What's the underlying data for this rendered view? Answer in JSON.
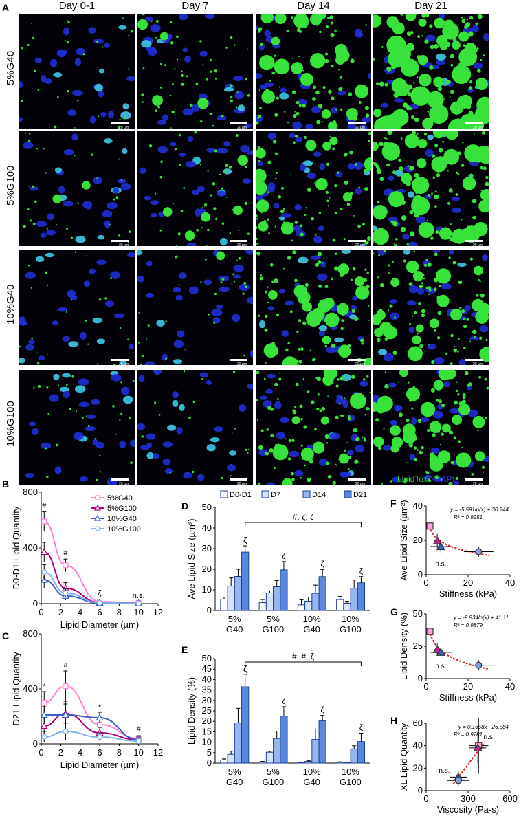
{
  "panel_labels": {
    "a": "A",
    "b": "B",
    "c": "C",
    "d": "D",
    "e": "E",
    "f": "F",
    "g": "G",
    "h": "H"
  },
  "micrographs": {
    "columns": [
      "Day 0-1",
      "Day 7",
      "Day 14",
      "Day 21"
    ],
    "rows": [
      "5%G40",
      "5%G100",
      "10%G40",
      "10%G100"
    ],
    "scale_bar": "20 µm",
    "stain_legend": {
      "lipidtox": "LipidTox",
      "sep": " • ",
      "dapi": "DAPI",
      "lipidtox_color": "#2fcf3a",
      "dapi_color": "#2a3cff"
    },
    "lipid_density_levels": [
      [
        0.05,
        0.25,
        0.55,
        0.85
      ],
      [
        0.08,
        0.2,
        0.5,
        0.8
      ],
      [
        0.02,
        0.06,
        0.55,
        0.6
      ],
      [
        0.06,
        0.0,
        0.6,
        0.6
      ]
    ]
  },
  "chart_data": [
    {
      "id": "B",
      "type": "scatter",
      "xlabel": "Lipid Diameter (µm)",
      "ylabel": "D0-D1 Lipid Quantity",
      "xlim": [
        0,
        12
      ],
      "ylim": [
        0,
        800
      ],
      "xticks": [
        0,
        2,
        4,
        6,
        8,
        10,
        12
      ],
      "yticks": [
        0,
        400,
        800
      ],
      "legend_position": "top-right",
      "x": [
        0.3,
        2.5,
        6,
        10
      ],
      "series": [
        {
          "name": "5%G40",
          "color": "#ff7fd6",
          "marker": "square",
          "values": [
            590,
            275,
            15,
            5
          ],
          "err": [
            70,
            45,
            10,
            5
          ]
        },
        {
          "name": "5%G100",
          "color": "#b0007a",
          "marker": "triangle",
          "values": [
            370,
            110,
            8,
            3
          ],
          "err": [
            70,
            40,
            8,
            3
          ]
        },
        {
          "name": "10%G40",
          "color": "#3a5fcd",
          "marker": "triangle",
          "values": [
            170,
            55,
            5,
            2
          ],
          "err": [
            60,
            30,
            5,
            2
          ]
        },
        {
          "name": "10%G100",
          "color": "#7fb3f0",
          "marker": "circle",
          "values": [
            225,
            75,
            6,
            2
          ],
          "err": [
            55,
            30,
            5,
            2
          ]
        }
      ],
      "annotations": [
        {
          "x": 0.3,
          "y": 690,
          "text": "#"
        },
        {
          "x": 2.5,
          "y": 345,
          "text": "#"
        },
        {
          "x": 6,
          "y": 60,
          "text": "ζ"
        },
        {
          "x": 10,
          "y": 40,
          "text": "n.s."
        }
      ]
    },
    {
      "id": "C",
      "type": "scatter",
      "xlabel": "Lipid Diameter (µm)",
      "ylabel": "D21 Lipid Quantity",
      "xlim": [
        0,
        12
      ],
      "ylim": [
        0,
        800
      ],
      "xticks": [
        0,
        2,
        4,
        6,
        8,
        10,
        12
      ],
      "yticks": [
        0,
        400,
        800
      ],
      "x": [
        0.3,
        2.5,
        6,
        10
      ],
      "series": [
        {
          "name": "5%G40",
          "color": "#ff7fd6",
          "marker": "square",
          "values": [
            300,
            420,
            140,
            40
          ],
          "err": [
            80,
            110,
            40,
            20
          ]
        },
        {
          "name": "5%G100",
          "color": "#b0007a",
          "marker": "triangle",
          "values": [
            130,
            220,
            80,
            30
          ],
          "err": [
            60,
            90,
            40,
            20
          ]
        },
        {
          "name": "10%G40",
          "color": "#3a5fcd",
          "marker": "triangle",
          "values": [
            210,
            210,
            190,
            30
          ],
          "err": [
            60,
            80,
            40,
            20
          ]
        },
        {
          "name": "10%G100",
          "color": "#7fb3f0",
          "marker": "circle",
          "values": [
            50,
            90,
            50,
            20
          ],
          "err": [
            40,
            60,
            30,
            15
          ]
        }
      ],
      "annotations": [
        {
          "x": 0.3,
          "y": 400,
          "text": "*"
        },
        {
          "x": 2.5,
          "y": 560,
          "text": "#"
        },
        {
          "x": 6,
          "y": 250,
          "text": "*"
        },
        {
          "x": 10,
          "y": 90,
          "text": "#"
        }
      ]
    },
    {
      "id": "D",
      "type": "bar",
      "ylabel": "Ave Lipid Size (µm²)",
      "ylim": [
        0,
        50
      ],
      "yticks": [
        0,
        10,
        20,
        30,
        40,
        50
      ],
      "categories": [
        "5%\nG40",
        "5%\nG100",
        "10%\nG40",
        "10%\nG100"
      ],
      "legend_position": "top",
      "bracket_label": "#, ζ, ζ",
      "series": [
        {
          "name": "D0-D1",
          "color": "#ffffff",
          "values": [
            5.5,
            3.8,
            2.7,
            5.3
          ],
          "err": [
            1,
            1.5,
            2.5,
            1.5
          ]
        },
        {
          "name": "D7",
          "color": "#d6e3f8",
          "values": [
            11.8,
            8.5,
            4.5,
            3.5
          ],
          "err": [
            4,
            1,
            2,
            1
          ]
        },
        {
          "name": "D14",
          "color": "#97b7ec",
          "values": [
            16.5,
            11.5,
            8.3,
            10.8
          ],
          "err": [
            3.5,
            3,
            4,
            4
          ]
        },
        {
          "name": "D21",
          "color": "#5b86dd",
          "values": [
            28.3,
            19.7,
            16.4,
            13.4
          ],
          "err": [
            3,
            4,
            3.5,
            3
          ]
        }
      ],
      "bar_marks": [
        "ζ",
        "ζ",
        "ζ",
        "ζ"
      ]
    },
    {
      "id": "E",
      "type": "bar",
      "ylabel": "Lipid Density (%)",
      "ylim": [
        0,
        50
      ],
      "yticks": [
        0,
        5,
        10,
        15,
        20,
        25,
        30,
        35,
        40,
        45,
        50
      ],
      "categories": [
        "5%\nG40",
        "5%\nG100",
        "10%\nG40",
        "10%\nG100"
      ],
      "bracket_label": "#, #, ζ",
      "series": [
        {
          "name": "D0-D1",
          "color": "#ffffff",
          "values": [
            1.5,
            0.5,
            0.3,
            0.4
          ],
          "err": [
            0.5,
            0.3,
            0.2,
            0.2
          ]
        },
        {
          "name": "D7",
          "color": "#d6e3f8",
          "values": [
            4.2,
            5.2,
            0.8,
            0.3
          ],
          "err": [
            1.5,
            0.5,
            0.3,
            0.2
          ]
        },
        {
          "name": "D14",
          "color": "#97b7ec",
          "values": [
            19.2,
            11.8,
            11.3,
            6.8
          ],
          "err": [
            7,
            3.5,
            5,
            1.5
          ]
        },
        {
          "name": "D21",
          "color": "#5b86dd",
          "values": [
            36.5,
            22.5,
            20.3,
            10.3
          ],
          "err": [
            6,
            4.5,
            2.5,
            4
          ]
        }
      ],
      "bar_marks": [
        "ζ",
        "ζ",
        "ζ",
        "ζ"
      ]
    },
    {
      "id": "F",
      "type": "scatter",
      "xlabel": "Stiffness (kPa)",
      "ylabel": "Ave Lipid Size (µm²)",
      "xlim": [
        0,
        40
      ],
      "ylim": [
        0,
        40
      ],
      "xticks": [
        0,
        20,
        40
      ],
      "yticks": [
        0,
        20,
        40
      ],
      "equation": "y = -5.591ln(x) + 30.244",
      "r2": "R² = 0.9251",
      "points": [
        {
          "x": 1.8,
          "y": 28.3,
          "xerr": 0.8,
          "yerr": 3,
          "color": "#ff9fdc",
          "marker": "square"
        },
        {
          "x": 5.3,
          "y": 19.7,
          "xerr": 1.5,
          "yerr": 4,
          "color": "#c0258f",
          "marker": "triangle"
        },
        {
          "x": 7.0,
          "y": 16.4,
          "xerr": 5,
          "yerr": 3.5,
          "color": "#3a5fcd",
          "marker": "triangle"
        },
        {
          "x": 25.0,
          "y": 13.4,
          "xerr": 7,
          "yerr": 3,
          "color": "#7f9fe3",
          "marker": "circle"
        }
      ],
      "trend": {
        "a": -5.591,
        "b": 30.244
      },
      "notes": [
        {
          "x": 7,
          "y": 5,
          "text": "n.s."
        }
      ]
    },
    {
      "id": "G",
      "type": "scatter",
      "xlabel": "Stiffness (kPa)",
      "ylabel": "Lipid Density (%)",
      "xlim": [
        0,
        40
      ],
      "ylim": [
        0,
        50
      ],
      "xticks": [
        0,
        20,
        40
      ],
      "yticks": [
        0,
        25,
        50
      ],
      "equation": "y = -9.934ln(x) + 41.11",
      "r2": "R² = 0.9879",
      "points": [
        {
          "x": 1.8,
          "y": 36.5,
          "xerr": 0.8,
          "yerr": 6,
          "color": "#ff9fdc",
          "marker": "square"
        },
        {
          "x": 5.3,
          "y": 22.5,
          "xerr": 1.5,
          "yerr": 4.5,
          "color": "#c0258f",
          "marker": "triangle"
        },
        {
          "x": 7.0,
          "y": 20.3,
          "xerr": 5,
          "yerr": 2.5,
          "color": "#3a5fcd",
          "marker": "triangle"
        },
        {
          "x": 25.0,
          "y": 10.3,
          "xerr": 7,
          "yerr": 4,
          "color": "#7f9fe3",
          "marker": "circle"
        }
      ],
      "trend": {
        "a": -9.934,
        "b": 41.11
      },
      "notes": [
        {
          "x": 7,
          "y": 8,
          "text": "n.s."
        }
      ]
    },
    {
      "id": "H",
      "type": "scatter",
      "xlabel": "Viscosity (Pa-s)",
      "ylabel": "XL Lipid Quantity",
      "xlim": [
        0,
        600
      ],
      "ylim": [
        0,
        60
      ],
      "xticks": [
        0,
        300,
        600
      ],
      "yticks": [
        0,
        20,
        40,
        60
      ],
      "equation": "y = 0.1668x - 26.584",
      "r2": "R² = 0.9781",
      "points": [
        {
          "x": 375,
          "y": 40,
          "xerr": 70,
          "yerr": 25,
          "color": "#ff9fdc",
          "marker": "square"
        },
        {
          "x": 370,
          "y": 38,
          "xerr": 60,
          "yerr": 15,
          "color": "#c0258f",
          "marker": "triangle"
        },
        {
          "x": 230,
          "y": 12,
          "xerr": 60,
          "yerr": 6,
          "color": "#3a5fcd",
          "marker": "triangle"
        },
        {
          "x": 230,
          "y": 9,
          "xerr": 80,
          "yerr": 5,
          "color": "#7f9fe3",
          "marker": "circle"
        }
      ],
      "trend": {
        "linear": true,
        "m": 0.1668,
        "c": -26.584
      },
      "notes": [
        {
          "x": 130,
          "y": 16,
          "text": "n.s."
        },
        {
          "x": 450,
          "y": 46,
          "text": "n.s."
        }
      ]
    }
  ]
}
